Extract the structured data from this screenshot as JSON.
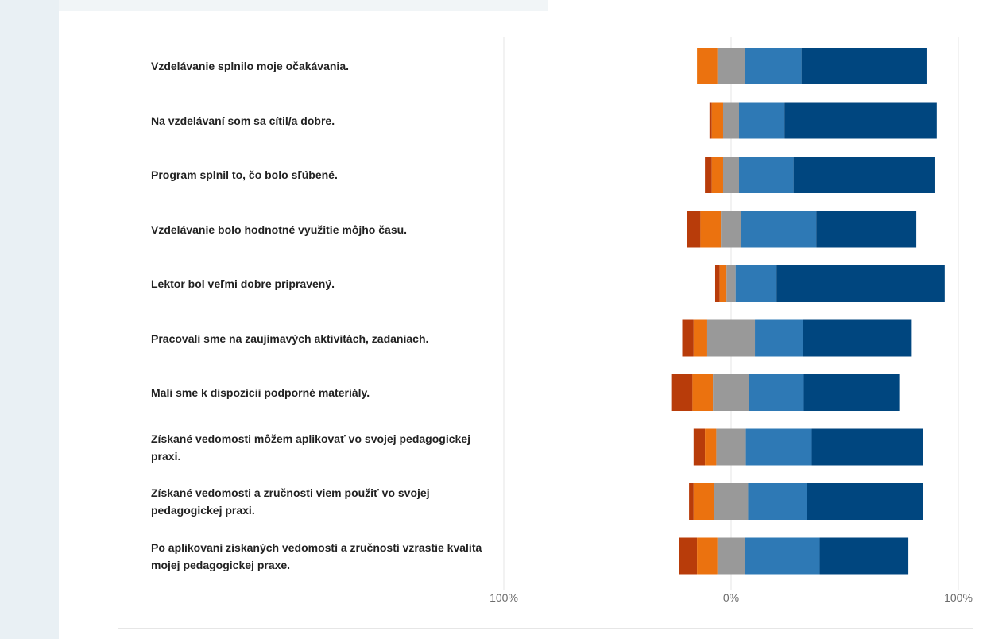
{
  "chart_data": {
    "type": "bar",
    "orientation": "horizontal",
    "stacked": "diverging",
    "center_label": "0%",
    "x_ticks": [
      "100%",
      "0%",
      "100%"
    ],
    "xlim": [
      -100,
      100
    ],
    "grid": true,
    "colors": [
      "#b83c0a",
      "#eb720f",
      "#999999",
      "#2e79b5",
      "#00467f"
    ],
    "categories": [
      "Vzdelávanie splnilo moje očakávania.",
      "Na vzdelávaní som sa cítil/a dobre.",
      "Program splnil to, čo bolo sľúbené.",
      "Vzdelávanie bolo hodnotné využitie môjho času.",
      "Lektor bol veľmi dobre pripravený.",
      "Pracovali sme na zaujímavých aktivitách, zadaniach.",
      "Mali sme k dispozícii podporné materiály.",
      "Získané vedomosti môžem aplikovať vo svojej pedagogickej praxi.",
      "Získané vedomosti a zručnosti viem použiť vo svojej pedagogickej praxi.",
      "Po aplikovaní získaných vedomostí a zručností vzrastie kvalita mojej pedagogickej praxe."
    ],
    "series": [
      {
        "values": [
          0,
          1,
          3,
          6,
          2,
          5,
          9,
          5,
          2,
          8
        ]
      },
      {
        "values": [
          9,
          5,
          5,
          9,
          3,
          6,
          9,
          5,
          9,
          9
        ]
      },
      {
        "values": [
          12,
          7,
          7,
          9,
          4,
          21,
          16,
          13,
          15,
          12
        ]
      },
      {
        "values": [
          25,
          20,
          24,
          33,
          18,
          21,
          24,
          29,
          26,
          33
        ]
      },
      {
        "values": [
          55,
          67,
          62,
          44,
          74,
          48,
          42,
          49,
          51,
          39
        ]
      }
    ]
  }
}
